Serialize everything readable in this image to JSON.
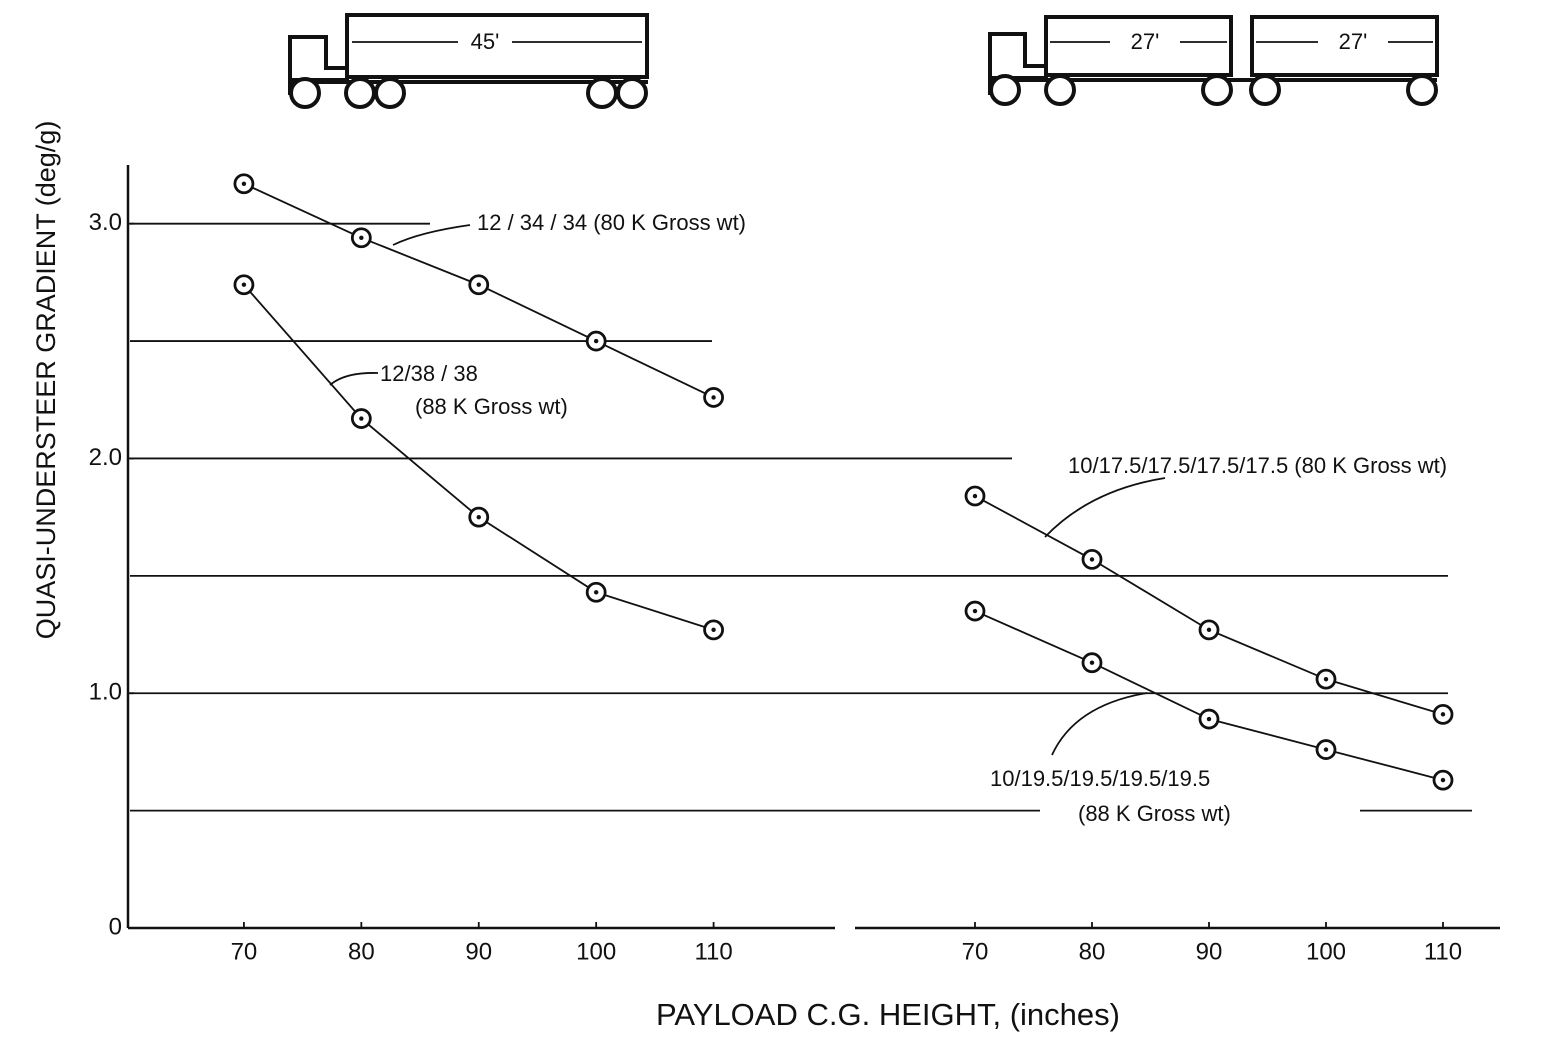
{
  "chart_data": [
    {
      "type": "line",
      "y_label": "QUASI-UNDERSTEER GRADIENT (deg/g)",
      "x_label": "PAYLOAD C.G. HEIGHT, (inches)",
      "x": [
        70,
        80,
        90,
        100,
        110
      ],
      "xlim": [
        60,
        120
      ],
      "xticks": [
        70,
        80,
        90,
        100,
        110
      ],
      "ylim": [
        0,
        3.25
      ],
      "yticks": [
        0,
        {
          "value": 1,
          "label": "1.0"
        },
        {
          "value": 2,
          "label": "2.0"
        },
        {
          "value": 3,
          "label": "3.0"
        }
      ],
      "grid_lines": [
        0.5,
        1,
        1.5,
        2,
        2.5,
        3
      ],
      "series": [
        {
          "label": [
            "12 / 34 / 34  (80 K Gross wt)"
          ],
          "color": "#111111",
          "values": [
            3.17,
            2.94,
            2.74,
            2.5,
            2.26
          ]
        },
        {
          "label": [
            "12/38 / 38",
            "(88 K Gross wt)"
          ],
          "color": "#111111",
          "values": [
            2.74,
            2.17,
            1.75,
            1.43,
            1.27
          ]
        }
      ]
    },
    {
      "type": "line",
      "x": [
        70,
        80,
        90,
        100,
        110
      ],
      "xlim": [
        60,
        115
      ],
      "xticks": [
        70,
        80,
        90,
        100,
        110
      ],
      "ylim": [
        0,
        3.25
      ],
      "series": [
        {
          "label": [
            "10/17.5/17.5/17.5/17.5  (80 K Gross wt)"
          ],
          "color": "#111111",
          "values": [
            1.84,
            1.57,
            1.27,
            1.06,
            0.91
          ]
        },
        {
          "label": [
            "10/19.5/19.5/19.5/19.5",
            "(88 K Gross wt)"
          ],
          "color": "#111111",
          "values": [
            1.35,
            1.13,
            0.89,
            0.76,
            0.63
          ]
        }
      ]
    }
  ],
  "trucks": {
    "single": "45'",
    "double": [
      "27'",
      "27'"
    ]
  }
}
